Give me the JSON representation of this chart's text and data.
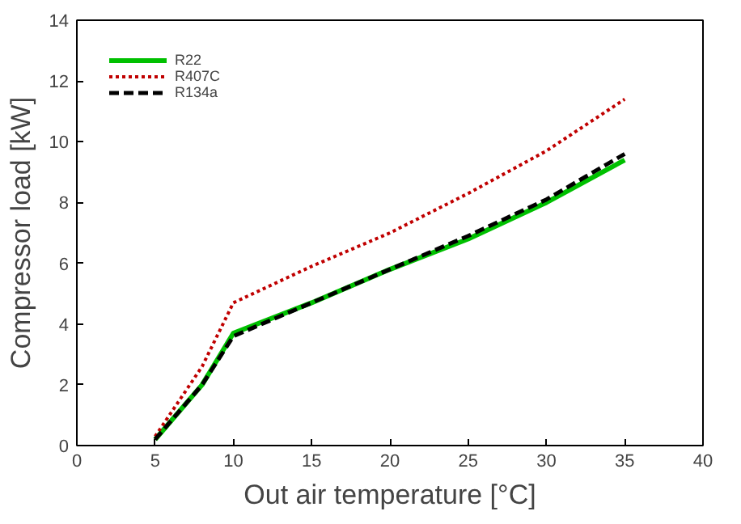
{
  "chart_data": {
    "type": "line",
    "xlabel": "Out air temperature [°C]",
    "ylabel": "Compressor load [kW]",
    "x": [
      5,
      8,
      10,
      15,
      20,
      25,
      30,
      35
    ],
    "series": [
      {
        "name": "R22",
        "color": "#00c000",
        "line_style": "solid",
        "values": [
          0.2,
          2,
          3.7,
          4.7,
          5.8,
          6.8,
          8,
          9.4
        ]
      },
      {
        "name": "R407C",
        "color": "#c00000",
        "line_style": "dotted",
        "values": [
          0.3,
          2.6,
          4.7,
          5.9,
          7,
          8.3,
          9.7,
          11.4
        ]
      },
      {
        "name": "R134a",
        "color": "#000000",
        "line_style": "dashed",
        "values": [
          0.2,
          2,
          3.6,
          4.7,
          5.8,
          6.9,
          8.1,
          9.6
        ]
      }
    ],
    "xlim": [
      0,
      40
    ],
    "xticks": [
      0,
      5,
      10,
      15,
      20,
      25,
      30,
      35,
      40
    ],
    "ylim": [
      0,
      14
    ],
    "yticks": [
      0,
      2,
      4,
      6,
      8,
      10,
      12,
      14
    ],
    "grid": false,
    "legend": "top left",
    "marker": "none"
  }
}
